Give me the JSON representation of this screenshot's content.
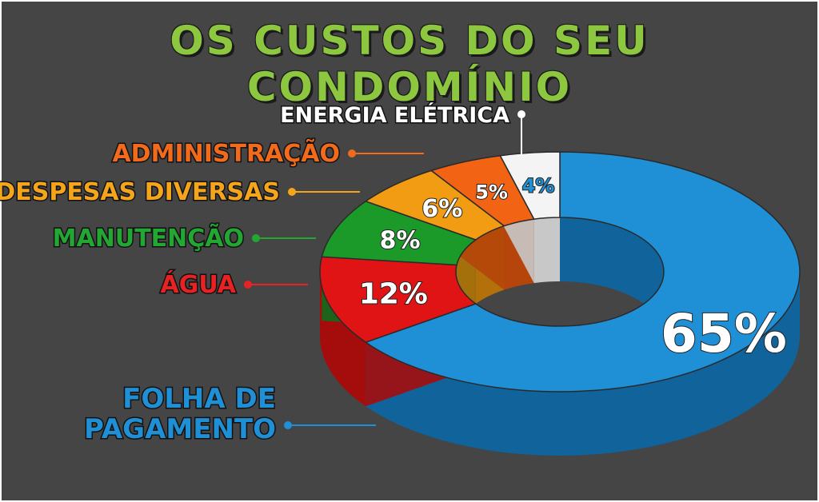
{
  "title": "OS CUSTOS DO SEU CONDOMÍNIO",
  "colors": {
    "background": "#454545",
    "title": "#8dc63f"
  },
  "chart_data": {
    "type": "pie",
    "title": "OS CUSTOS DO SEU CONDOMÍNIO",
    "unit": "%",
    "slices": [
      {
        "label": "FOLHA DE PAGAMENTO",
        "label_lines": [
          "FOLHA DE",
          "PAGAMENTO"
        ],
        "value": 65,
        "value_label": "65%",
        "color": "#1f8fd6",
        "side": "#11639b",
        "text": "#1f8fd6"
      },
      {
        "label": "ÁGUA",
        "label_lines": [
          "ÁGUA"
        ],
        "value": 12,
        "value_label": "12%",
        "color": "#e01414",
        "side": "#a50c0c",
        "text": "#e82222"
      },
      {
        "label": "MANUTENÇÃO",
        "label_lines": [
          "MANUTENÇÃO"
        ],
        "value": 8,
        "value_label": "8%",
        "color": "#1b9a2a",
        "side": "#106d1c",
        "text": "#22a832"
      },
      {
        "label": "DESPESAS DIVERSAS",
        "label_lines": [
          "DESPESAS DIVERSAS"
        ],
        "value": 6,
        "value_label": "6%",
        "color": "#f19c12",
        "side": "#b4700a",
        "text": "#f5a51b"
      },
      {
        "label": "ADMINISTRAÇÃO",
        "label_lines": [
          "ADMINISTRAÇÃO"
        ],
        "value": 5,
        "value_label": "5%",
        "color": "#f26414",
        "side": "#b5450a",
        "text": "#f26a1b"
      },
      {
        "label": "ENERGIA ELÉTRICA",
        "label_lines": [
          "ENERGIA ELÉTRICA"
        ],
        "value": 4,
        "value_label": "4%",
        "color": "#f4f4f4",
        "side": "#c8c8c8",
        "text": "#ffffff",
        "value_color": "#1f8fd6"
      }
    ],
    "legend": "left"
  }
}
